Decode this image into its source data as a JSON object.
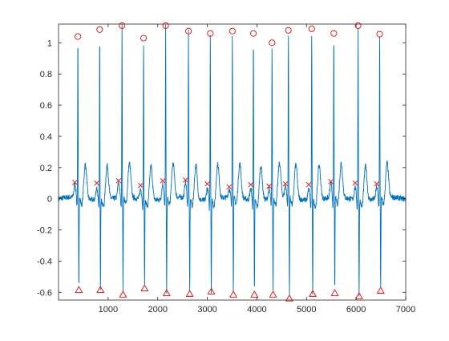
{
  "chart_data": {
    "type": "line",
    "title": "",
    "xlabel": "",
    "ylabel": "",
    "xlim": [
      0,
      7000
    ],
    "ylim": [
      -0.65,
      1.12
    ],
    "x_ticks": [
      1000,
      2000,
      3000,
      4000,
      5000,
      6000,
      7000
    ],
    "x_tick_labels": [
      "1000",
      "2000",
      "3000",
      "4000",
      "5000",
      "6000",
      "7000"
    ],
    "y_ticks": [
      -0.6,
      -0.4,
      -0.2,
      0,
      0.2,
      0.4,
      0.6,
      0.8,
      1
    ],
    "y_tick_labels": [
      "-0.6",
      "-0.4",
      "-0.2",
      "0",
      "0.2",
      "0.4",
      "0.6",
      "0.8",
      "1"
    ],
    "grid": false,
    "box": true,
    "colors": {
      "signal": "#0072BD",
      "markers": "#FF0000",
      "axes": "#262626"
    },
    "series": [
      {
        "kind": "signal",
        "description_of_shape": "ECG trace",
        "r_peaks": {
          "x": [
            390,
            830,
            1280,
            1715,
            2160,
            2620,
            3060,
            3505,
            3930,
            4305,
            4635,
            5105,
            5550,
            6040,
            6475
          ],
          "y": [
            1.04,
            1.085,
            1.11,
            1.03,
            1.11,
            1.075,
            1.06,
            1.075,
            1.06,
            1.0,
            1.08,
            1.09,
            1.06,
            1.11,
            1.055
          ]
        },
        "s_troughs": {
          "x": [
            410,
            845,
            1300,
            1735,
            2180,
            2645,
            3080,
            3525,
            3950,
            4325,
            4655,
            5125,
            5570,
            6060,
            6495
          ],
          "y": [
            -0.585,
            -0.585,
            -0.615,
            -0.575,
            -0.605,
            -0.61,
            -0.595,
            -0.615,
            -0.615,
            -0.615,
            -0.64,
            -0.61,
            -0.605,
            -0.625,
            -0.59
          ]
        },
        "baseline": 0.0
      }
    ],
    "markers": [
      {
        "symbol": "circle",
        "x": [
          390,
          830,
          1280,
          1715,
          2160,
          2620,
          3060,
          3505,
          3930,
          4305,
          4635,
          5105,
          5550,
          6040,
          6475
        ],
        "y": [
          1.04,
          1.085,
          1.11,
          1.03,
          1.11,
          1.075,
          1.06,
          1.075,
          1.06,
          1.0,
          1.08,
          1.09,
          1.06,
          1.11,
          1.055
        ]
      },
      {
        "symbol": "triangle",
        "x": [
          410,
          845,
          1300,
          1735,
          2180,
          2645,
          3080,
          3525,
          3950,
          4325,
          4655,
          5125,
          5570,
          6060,
          6495
        ],
        "y": [
          -0.585,
          -0.585,
          -0.615,
          -0.575,
          -0.605,
          -0.61,
          -0.595,
          -0.615,
          -0.615,
          -0.615,
          -0.64,
          -0.61,
          -0.605,
          -0.625,
          -0.59
        ]
      },
      {
        "symbol": "x",
        "x": [
          330,
          770,
          1210,
          1655,
          2100,
          2560,
          3000,
          3440,
          3875,
          4245,
          4575,
          5045,
          5490,
          5980,
          6415
        ],
        "y": [
          0.105,
          0.1,
          0.115,
          0.085,
          0.115,
          0.12,
          0.095,
          0.075,
          0.09,
          0.08,
          0.095,
          0.09,
          0.11,
          0.1,
          0.095
        ]
      }
    ]
  }
}
